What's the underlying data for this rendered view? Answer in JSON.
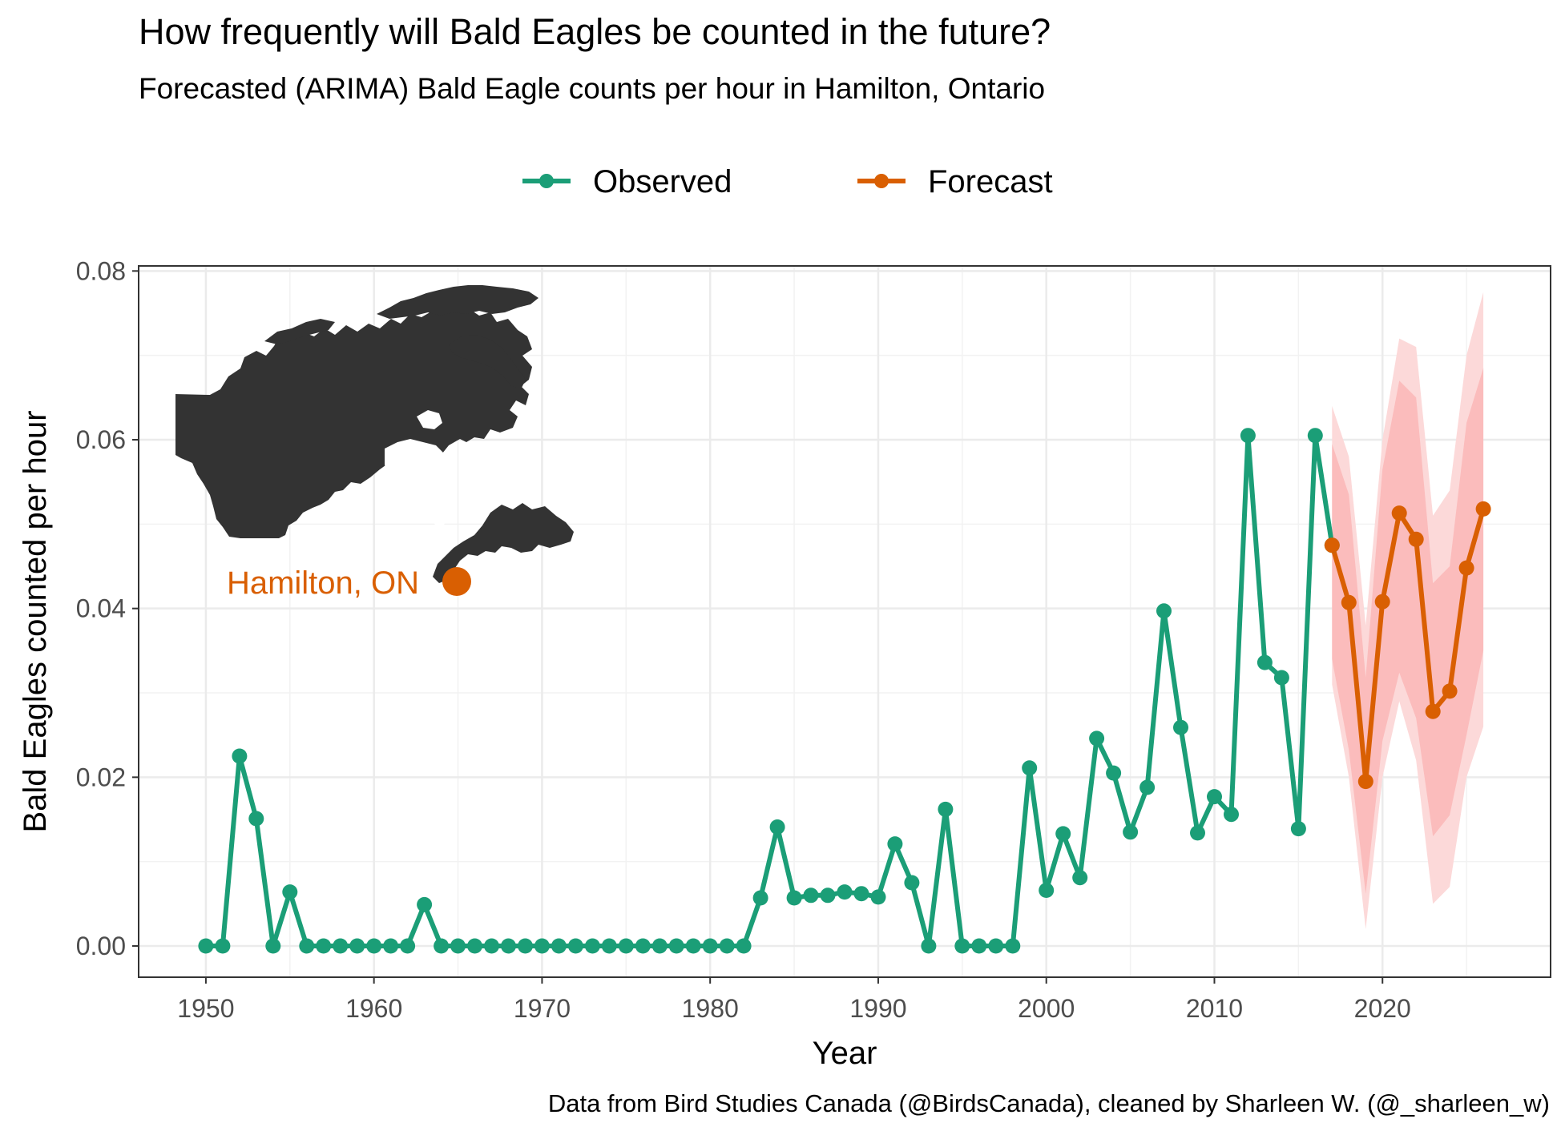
{
  "chart_data": {
    "type": "line",
    "title": "How frequently will Bald Eagles be counted in the future?",
    "subtitle": "Forecasted (ARIMA) Bald Eagle counts per hour in Hamilton, Ontario",
    "xlabel": "Year",
    "ylabel": "Bald Eagles counted per hour",
    "caption": "Data from Bird Studies Canada (@BirdsCanada), cleaned by Sharleen W. (@_sharleen_w)",
    "xlim": [
      1946,
      2030
    ],
    "ylim": [
      -0.0037,
      0.0806
    ],
    "x_ticks": [
      1950,
      1960,
      1970,
      1980,
      1990,
      2000,
      2010,
      2020
    ],
    "x_tick_labels": [
      "1950",
      "1960",
      "1970",
      "1980",
      "1990",
      "2000",
      "2010",
      "2020"
    ],
    "y_ticks": [
      0,
      0.02,
      0.04,
      0.06,
      0.08
    ],
    "y_tick_labels": [
      "0.00",
      "0.02",
      "0.04",
      "0.06",
      "0.08"
    ],
    "grid": true,
    "legend_position": "top",
    "legend": [
      {
        "label": "Observed",
        "color": "#1b9e77"
      },
      {
        "label": "Forecast",
        "color": "#d95f02"
      }
    ],
    "series": [
      {
        "name": "Observed",
        "color": "#1b9e77",
        "x": [
          1950,
          1951,
          1952,
          1953,
          1954,
          1955,
          1956,
          1957,
          1958,
          1959,
          1960,
          1961,
          1962,
          1963,
          1964,
          1965,
          1966,
          1967,
          1968,
          1969,
          1970,
          1971,
          1972,
          1973,
          1974,
          1975,
          1976,
          1977,
          1978,
          1979,
          1980,
          1981,
          1982,
          1983,
          1984,
          1985,
          1986,
          1987,
          1988,
          1989,
          1990,
          1991,
          1992,
          1993,
          1994,
          1995,
          1996,
          1997,
          1998,
          1999,
          2000,
          2001,
          2002,
          2003,
          2004,
          2005,
          2006,
          2007,
          2008,
          2009,
          2010,
          2011,
          2012,
          2013,
          2014,
          2015,
          2016,
          2017
        ],
        "values": [
          0,
          0,
          0.0225,
          0.0151,
          0,
          0.0064,
          0,
          0,
          0,
          0,
          0,
          0,
          0,
          0.0049,
          0,
          0,
          0,
          0,
          0,
          0,
          0,
          0,
          0,
          0,
          0,
          0,
          0,
          0,
          0,
          0,
          0,
          0,
          0,
          0.0057,
          0.0141,
          0.0057,
          0.006,
          0.006,
          0.0064,
          0.0062,
          0.0058,
          0.0121,
          0.0075,
          0,
          0.0162,
          0,
          0,
          0,
          0,
          0.0211,
          0.0066,
          0.0133,
          0.0081,
          0.0246,
          0.0205,
          0.0135,
          0.0188,
          0.0397,
          0.0259,
          0.0134,
          0.0177,
          0.0156,
          0.0605,
          0.0336,
          0.0318,
          0.0139,
          0.0605,
          0.0475
        ]
      },
      {
        "name": "Forecast",
        "color": "#d95f02",
        "x": [
          2017,
          2018,
          2019,
          2020,
          2021,
          2022,
          2023,
          2024,
          2025,
          2026
        ],
        "values": [
          0.0475,
          0.0407,
          0.0195,
          0.0408,
          0.0513,
          0.0482,
          0.0278,
          0.0302,
          0.0448,
          0.0518
        ],
        "ci80_low": [
          0.034,
          0.0232,
          0.0062,
          0.0243,
          0.0324,
          0.027,
          0.013,
          0.0155,
          0.025,
          0.035
        ],
        "ci80_high": [
          0.0595,
          0.0535,
          0.0318,
          0.0565,
          0.067,
          0.065,
          0.043,
          0.045,
          0.062,
          0.0685
        ],
        "ci95_low": [
          0.031,
          0.02,
          0.002,
          0.02,
          0.029,
          0.022,
          0.005,
          0.007,
          0.02,
          0.026
        ],
        "ci95_high": [
          0.064,
          0.058,
          0.038,
          0.06,
          0.072,
          0.071,
          0.051,
          0.054,
          0.07,
          0.0775
        ]
      }
    ],
    "ci_colors": {
      "ci95": "#fcd9d9",
      "ci80": "#fbbcbc"
    },
    "annotation": {
      "label": "Hamilton, ON",
      "color": "#d95f02"
    },
    "inset_map": {
      "name": "Canada",
      "color": "#333333"
    }
  }
}
